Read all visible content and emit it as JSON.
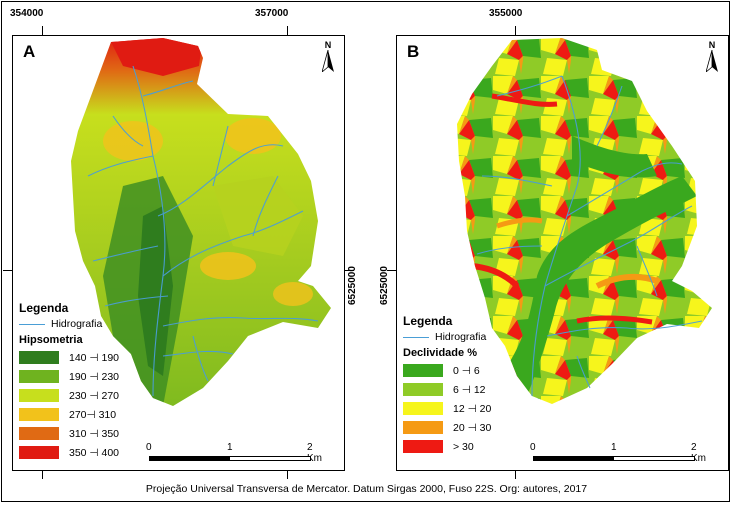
{
  "colors": {
    "hydro": "#4a9ed6",
    "hypso": [
      "#2f7d1e",
      "#6fb31f",
      "#c7df1d",
      "#f2c21b",
      "#e06a14",
      "#e01b12"
    ],
    "slope": [
      "#3aa81e",
      "#8fcb27",
      "#f6f51c",
      "#f59a14",
      "#ee1a13"
    ]
  },
  "coords": {
    "a_top_1": "354000",
    "a_top_2": "357000",
    "b_top": "355000",
    "a_right": "6525000",
    "b_left": "6525000"
  },
  "panel_a": {
    "letter": "A",
    "north": "N",
    "legend_title": "Legenda",
    "hydro_label": "Hidrografia",
    "class_title": "Hipsometria",
    "classes": [
      "140 ⊣ 190",
      "190 ⊣ 230",
      "230 ⊣ 270",
      "270⊣ 310",
      "310 ⊣ 350",
      "350 ⊣ 400"
    ],
    "scale": [
      "0",
      "1",
      "2 Km"
    ]
  },
  "panel_b": {
    "letter": "B",
    "north": "N",
    "legend_title": "Legenda",
    "hydro_label": "Hidrografia",
    "class_title": "Declividade %",
    "classes": [
      "0 ⊣ 6",
      "6 ⊣ 12",
      "12 ⊣ 20",
      "20 ⊣ 30",
      "> 30"
    ],
    "scale": [
      "0",
      "1",
      "2 Km"
    ]
  },
  "caption": "Projeção Universal Transversa de Mercator. Datum Sirgas 2000, Fuso 22S. Org: autores, 2017"
}
